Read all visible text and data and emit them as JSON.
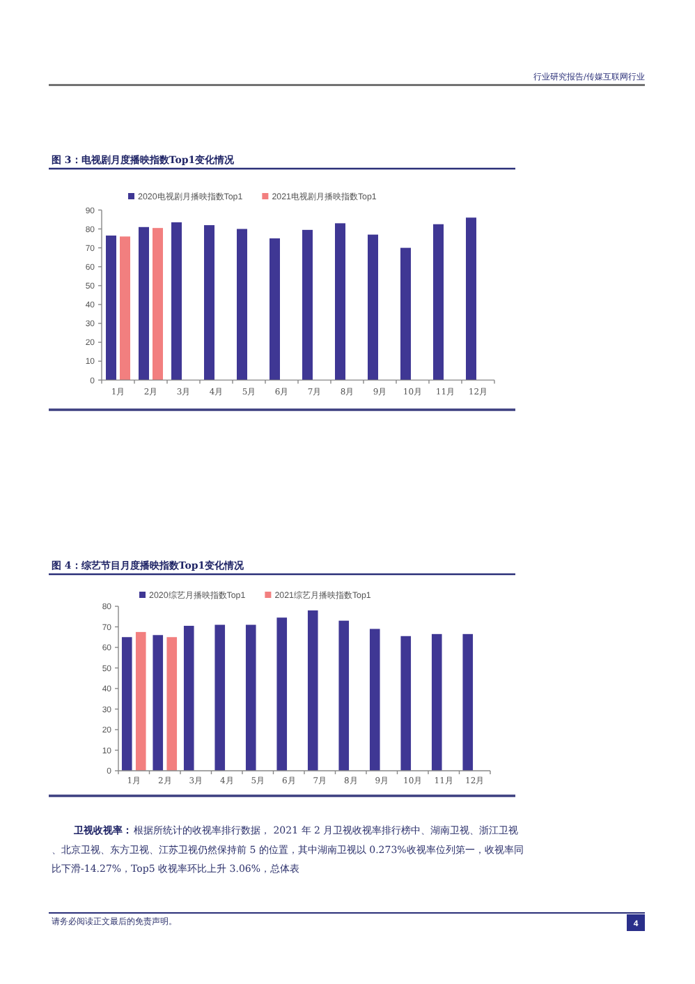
{
  "chart_data": [
    {
      "type": "bar",
      "title": "图 3：电视剧月度播映指数Top1变化情况",
      "categories": [
        "1月",
        "2月",
        "3月",
        "4月",
        "5月",
        "6月",
        "7月",
        "8月",
        "9月",
        "10月",
        "11月",
        "12月"
      ],
      "series": [
        {
          "name": "2020电视剧月播映指数Top1",
          "color": "#3f3794",
          "values": [
            76.5,
            81,
            83.5,
            82,
            80,
            75,
            79.5,
            83,
            77,
            70,
            82.5,
            86
          ]
        },
        {
          "name": "2021电视剧月播映指数Top1",
          "color": "#f27f7f",
          "values": [
            76,
            80.5,
            null,
            null,
            null,
            null,
            null,
            null,
            null,
            null,
            null,
            null
          ]
        }
      ],
      "ylim": [
        0,
        90
      ],
      "yticks": [
        0,
        10,
        20,
        30,
        40,
        50,
        60,
        70,
        80,
        90
      ],
      "legend": "top",
      "annotations": [
        "行业研究报告/传媒互联网行业"
      ]
    },
    {
      "type": "bar",
      "title": "图 4：综艺节目月度播映指数Top1变化情况",
      "categories": [
        "1月",
        "2月",
        "3月",
        "4月",
        "5月",
        "6月",
        "7月",
        "8月",
        "9月",
        "10月",
        "11月",
        "12月"
      ],
      "series": [
        {
          "name": "2020综艺月播映指数Top1",
          "color": "#3f3794",
          "values": [
            65,
            66,
            70.5,
            71,
            71,
            74.5,
            78,
            73,
            69,
            65.5,
            66.5,
            66.5
          ]
        },
        {
          "name": "2021综艺月播映指数Top1",
          "color": "#f27f7f",
          "values": [
            67.5,
            65,
            null,
            null,
            null,
            null,
            null,
            null,
            null,
            null,
            null,
            null
          ]
        }
      ],
      "ylim": [
        0,
        80
      ],
      "yticks": [
        0,
        10,
        20,
        30,
        40,
        50,
        60,
        70,
        80
      ],
      "legend": "top",
      "annotations": [
        "卫视收视率：",
        "根据所统计的收视率排行数据， 2021 年 2 月卫视收视率排行榜中、湖南卫视、浙江卫视、北京卫视、东方卫视、江苏卫视仍然保持前 5 的位置，其中湖南卫视以 0.273%收视率位列第一，收视率同比下滑-14.27%，Top5 收视率环比上升 3.06%，总体表",
        "请务必阅读正文最后的免责声明。",
        "4"
      ]
    }
  ]
}
